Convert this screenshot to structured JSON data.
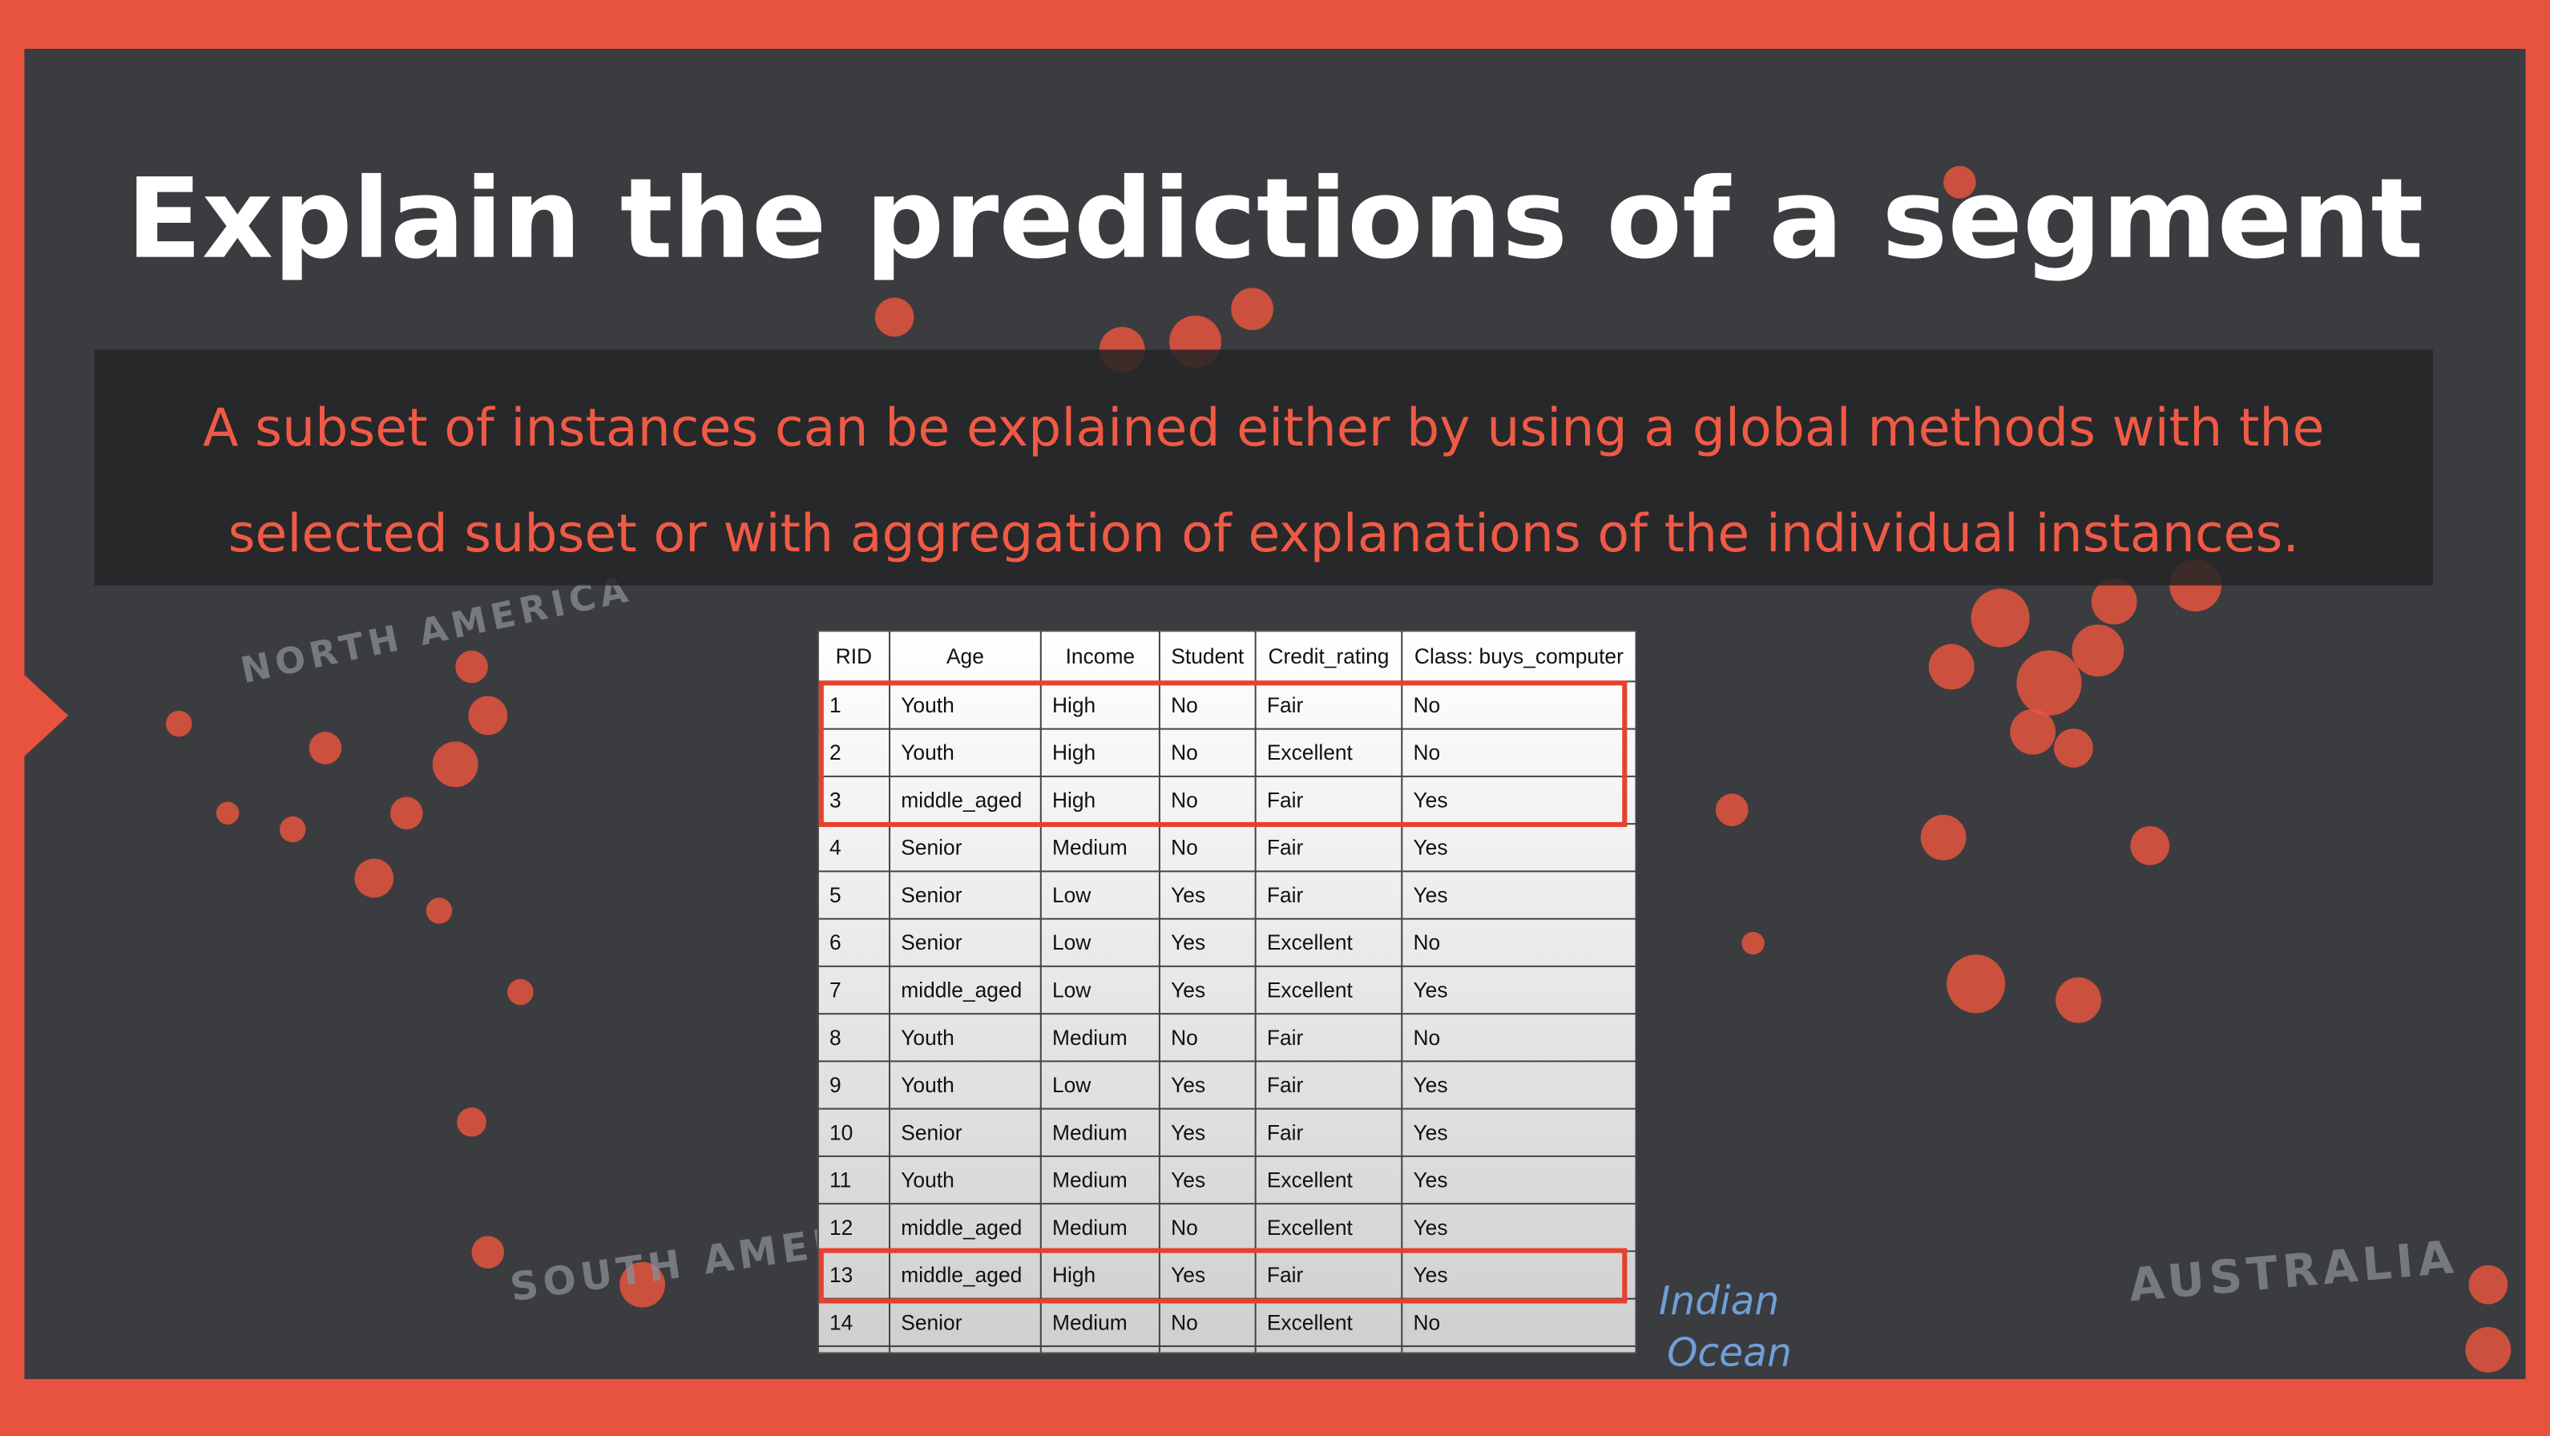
{
  "header": {
    "title": "Explain the predictions of a segment",
    "subtitle_lines": [
      "A subset of instances can be explained either by using a global methods with the",
      "selected subset or with aggregation of explanations of the individual instances."
    ]
  },
  "table": {
    "columns": [
      "RID",
      "Age",
      "Income",
      "Student",
      "Credit_rating",
      "Class: buys_computer"
    ],
    "rows": [
      [
        "1",
        "Youth",
        "High",
        "No",
        "Fair",
        "No"
      ],
      [
        "2",
        "Youth",
        "High",
        "No",
        "Excellent",
        "No"
      ],
      [
        "3",
        "middle_aged",
        "High",
        "No",
        "Fair",
        "Yes"
      ],
      [
        "4",
        "Senior",
        "Medium",
        "No",
        "Fair",
        "Yes"
      ],
      [
        "5",
        "Senior",
        "Low",
        "Yes",
        "Fair",
        "Yes"
      ],
      [
        "6",
        "Senior",
        "Low",
        "Yes",
        "Excellent",
        "No"
      ],
      [
        "7",
        "middle_aged",
        "Low",
        "Yes",
        "Excellent",
        "Yes"
      ],
      [
        "8",
        "Youth",
        "Medium",
        "No",
        "Fair",
        "No"
      ],
      [
        "9",
        "Youth",
        "Low",
        "Yes",
        "Fair",
        "Yes"
      ],
      [
        "10",
        "Senior",
        "Medium",
        "Yes",
        "Fair",
        "Yes"
      ],
      [
        "11",
        "Youth",
        "Medium",
        "Yes",
        "Excellent",
        "Yes"
      ],
      [
        "12",
        "middle_aged",
        "Medium",
        "No",
        "Excellent",
        "Yes"
      ],
      [
        "13",
        "middle_aged",
        "High",
        "Yes",
        "Fair",
        "Yes"
      ],
      [
        "14",
        "Senior",
        "Medium",
        "No",
        "Excellent",
        "No"
      ]
    ]
  },
  "map_labels": [
    "NORTH AMERICA",
    "SOUTH AMERICA",
    "AUSTRALIA",
    "Indian",
    "Ocean"
  ]
}
